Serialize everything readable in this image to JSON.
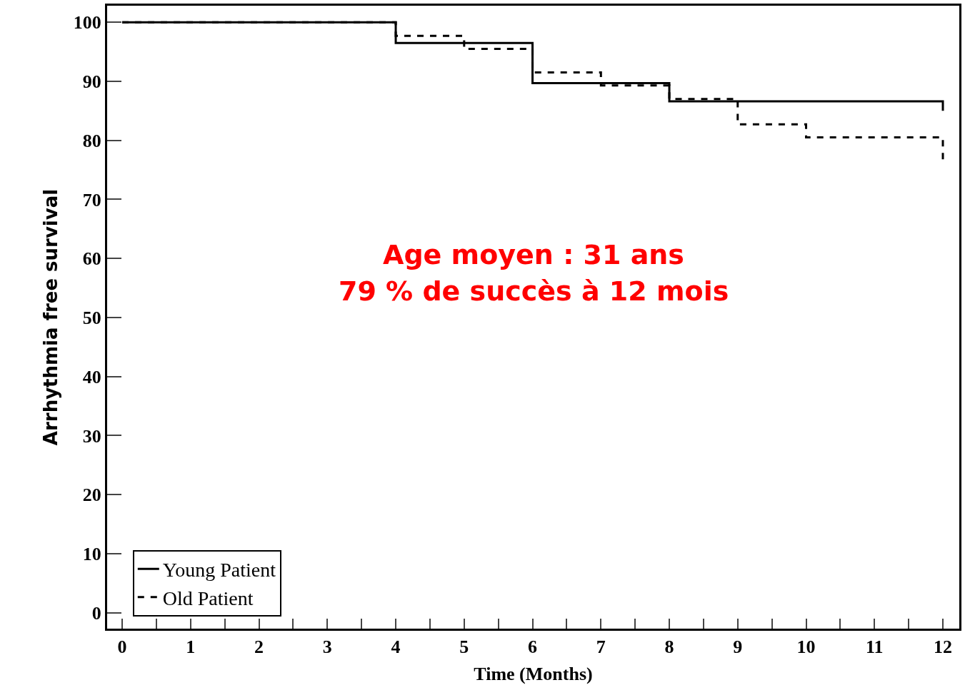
{
  "chart_data": {
    "type": "step",
    "xlabel": "Time (Months)",
    "ylabel": "Arrhythmia free survival",
    "annotations": [
      "Age moyen : 31 ans",
      "79 % de succès à 12 mois"
    ],
    "series": [
      {
        "name": "Young Patient",
        "color": "#000000",
        "line_style": "solid",
        "x": [
          0,
          4,
          6,
          8,
          12,
          12
        ],
        "values": [
          100,
          96.5,
          89.7,
          86.6,
          86.6,
          85
        ]
      },
      {
        "name": "Old Patient",
        "color": "#000000",
        "line_style": "dashed",
        "x": [
          0,
          4,
          5,
          6,
          7,
          8,
          9,
          10,
          12,
          12
        ],
        "values": [
          100,
          97.7,
          95.5,
          91.5,
          89.3,
          87,
          82.7,
          80.5,
          80.5,
          76.8
        ]
      }
    ],
    "xlim": [
      -0.22,
      12.24
    ],
    "ylim": [
      -2.7,
      102.8
    ],
    "xticks": [
      0,
      {
        "value": 0.5,
        "label": null
      },
      1,
      {
        "value": 1.5,
        "label": null
      },
      2,
      {
        "value": 2.5,
        "label": null
      },
      3,
      {
        "value": 3.5,
        "label": null
      },
      4,
      {
        "value": 4.5,
        "label": null
      },
      5,
      {
        "value": 5.5,
        "label": null
      },
      6,
      {
        "value": 6.5,
        "label": null
      },
      7,
      {
        "value": 7.5,
        "label": null
      },
      8,
      {
        "value": 8.5,
        "label": null
      },
      9,
      {
        "value": 9.5,
        "label": null
      },
      10,
      {
        "value": 10.5,
        "label": null
      },
      11,
      {
        "value": 11.5,
        "label": null
      },
      12
    ],
    "yticks": [
      0,
      10,
      20,
      30,
      40,
      50,
      60,
      70,
      80,
      90,
      100
    ],
    "legend": "bottom left",
    "marker": "none"
  }
}
